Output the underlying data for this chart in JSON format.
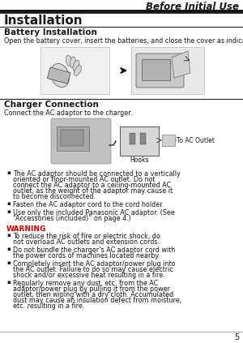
{
  "title_header": "Before Initial Use",
  "page_number": "5",
  "section_title": "Installation",
  "subsection1_title": "Battery Installation",
  "subsection1_body": "Open the battery cover, insert the batteries, and close the cover as indicated below.",
  "subsection2_title": "Charger Connection",
  "subsection2_body": "Connect the AC adaptor to the charger.",
  "charger_label_hooks": "Hooks",
  "charger_label_outlet": "To AC Outlet",
  "bullet1": "The AC adaptor should be connected to a vertically oriented or floor-mounted AC outlet. Do not connect the AC adaptor to a ceiling-mounted AC outlet, as the weight of the adaptor may cause it to become disconnected.",
  "bullet2": "Fasten the AC adaptor cord to the cord holder.",
  "bullet3": "Use only the included Panasonic AC adaptor. (See “Accessories (included)” on page 4.)",
  "warning_title": "WARNING",
  "warn1": "To reduce the risk of fire or electric shock, do not overload AC outlets and extension cords.",
  "warn2": "Do not bundle the charger’s AC adaptor cord with the power cords of machines located nearby.",
  "warn3": "Completely insert the AC adaptor/power plug into the AC outlet. Failure to do so may cause electric shock and/or excessive heat resulting in a fire.",
  "warn4": "Regularly remove any dust, etc. from the AC adaptor/power plug by pulling it from the power outlet, then wiping with a dry cloth. Accumulated dust may cause an insulation defect from moisture, etc. resulting in a fire.",
  "bg_color": "#ffffff",
  "text_color": "#1a1a1a",
  "warning_color": "#cc0000",
  "line_color": "#333333"
}
